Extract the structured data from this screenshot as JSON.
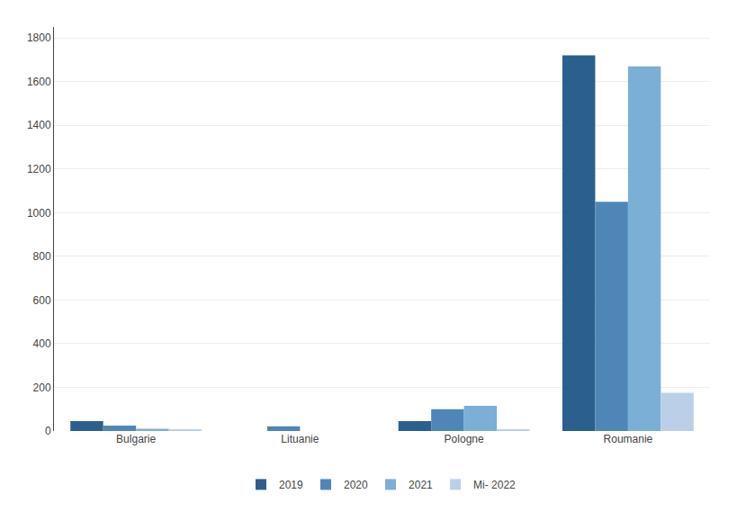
{
  "chart_data": {
    "type": "bar",
    "categories": [
      "Bulgarie",
      "Lituanie",
      "Pologne",
      "Roumanie"
    ],
    "series": [
      {
        "name": "2019",
        "color": "#2B5F8E",
        "values": [
          45,
          0,
          45,
          1720
        ]
      },
      {
        "name": "2020",
        "color": "#4F86B8",
        "values": [
          25,
          22,
          100,
          1050
        ]
      },
      {
        "name": "2021",
        "color": "#7BAFD6",
        "values": [
          10,
          0,
          115,
          1670
        ]
      },
      {
        "name": "Mi- 2022",
        "color": "#BBCFE8",
        "values": [
          5,
          0,
          5,
          175
        ]
      }
    ],
    "ylim": [
      0,
      1850
    ],
    "yticks": [
      0,
      200,
      400,
      600,
      800,
      1000,
      1200,
      1400,
      1600,
      1800
    ],
    "grid": true,
    "legend": "bottom"
  }
}
